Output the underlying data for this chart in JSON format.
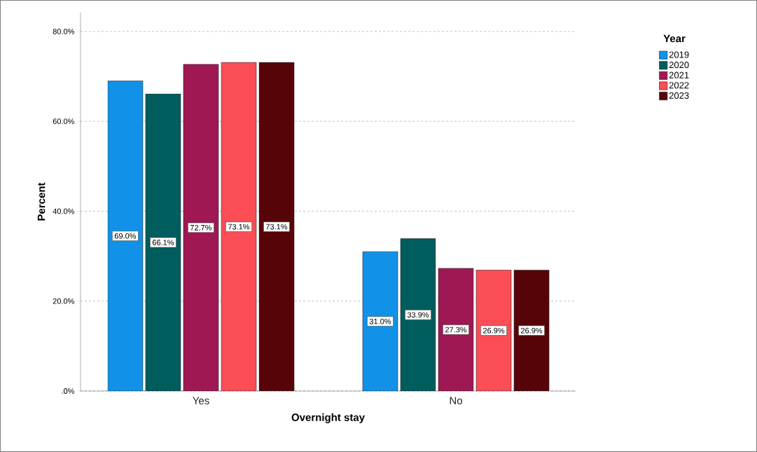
{
  "chart_data": {
    "type": "bar",
    "xlabel": "Overnight stay",
    "ylabel": "Percent",
    "legend_title": "Year",
    "categories": [
      "Yes",
      "No"
    ],
    "series": [
      {
        "name": "2019",
        "color": "#1192e8",
        "values": [
          69.0,
          31.0
        ],
        "value_labels": [
          "69.0%",
          "31.0%"
        ]
      },
      {
        "name": "2020",
        "color": "#005d5d",
        "values": [
          66.1,
          33.9
        ],
        "value_labels": [
          "66.1%",
          "33.9%"
        ]
      },
      {
        "name": "2021",
        "color": "#9f1853",
        "values": [
          72.7,
          27.3
        ],
        "value_labels": [
          "72.7%",
          "27.3%"
        ]
      },
      {
        "name": "2022",
        "color": "#fa4d56",
        "values": [
          73.1,
          26.9
        ],
        "value_labels": [
          "73.1%",
          "26.9%"
        ]
      },
      {
        "name": "2023",
        "color": "#570408",
        "values": [
          73.1,
          26.9
        ],
        "value_labels": [
          "73.1%",
          "26.9%"
        ]
      }
    ],
    "ylim": [
      0,
      84.2
    ],
    "yticks": [
      {
        "value": 0,
        "label": ".0%"
      },
      {
        "value": 20,
        "label": "20.0%"
      },
      {
        "value": 40,
        "label": "40.0%"
      },
      {
        "value": 60,
        "label": "60.0%"
      },
      {
        "value": 80,
        "label": "80.0%"
      }
    ],
    "grid": "y",
    "legend": "top right"
  }
}
